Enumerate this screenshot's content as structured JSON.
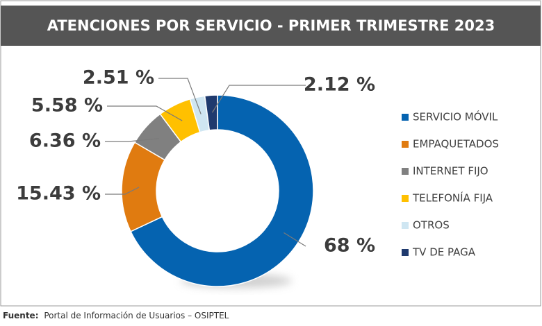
{
  "chart_data": {
    "type": "donut",
    "title": "ATENCIONES POR SERVICIO - PRIMER TRIMESTRE 2023",
    "categories": [
      "SERVICIO MÓVIL",
      "EMPAQUETADOS",
      "INTERNET FIJO",
      "TELEFONÍA FIJA",
      "OTROS",
      "TV DE PAGA"
    ],
    "values": [
      68,
      15.43,
      6.36,
      5.58,
      2.51,
      2.12
    ],
    "value_labels": [
      "68 %",
      "15.43 %",
      "6.36 %",
      "5.58 %",
      "2.51 %",
      "2.12 %"
    ],
    "colors": [
      "#0563b0",
      "#e07b10",
      "#808080",
      "#ffc000",
      "#cfe6f2",
      "#1f3a6e"
    ],
    "legend": "right",
    "source": {
      "label": "Fuente:",
      "text": "Portal de Información de Usuarios – OSIPTEL"
    }
  }
}
